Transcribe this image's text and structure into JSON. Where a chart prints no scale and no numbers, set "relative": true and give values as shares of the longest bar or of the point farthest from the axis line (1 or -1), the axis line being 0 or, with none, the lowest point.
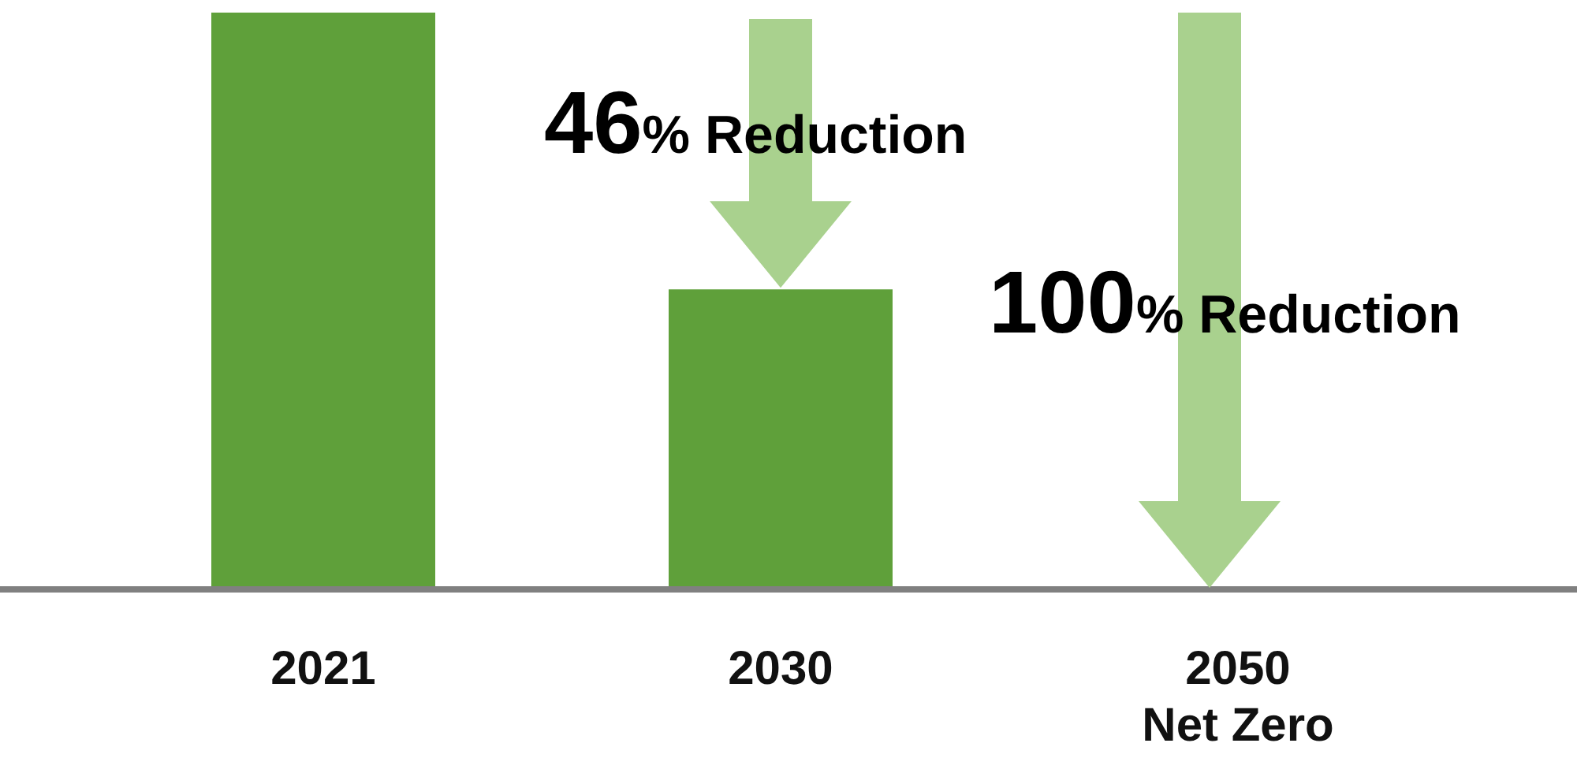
{
  "chart_data": {
    "type": "bar",
    "relative": true,
    "categories": [
      "2021",
      "2030",
      "2050\nNet Zero"
    ],
    "values": [
      1,
      0.52,
      0
    ],
    "color": "#5fa03a",
    "annotations": [
      "46% Reduction",
      "100% Reduction"
    ],
    "legend": false,
    "grid": false
  }
}
